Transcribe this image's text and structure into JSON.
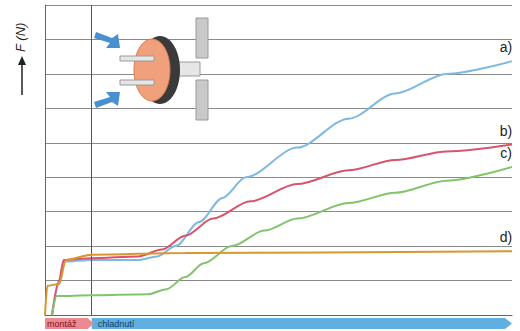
{
  "chart_data": {
    "type": "line",
    "y_label": "F (N)",
    "xlim": [
      0,
      100
    ],
    "ylim": [
      0,
      9
    ],
    "yticks": [
      0,
      1,
      2,
      3,
      4,
      5,
      6,
      7,
      8,
      9
    ],
    "grid": true,
    "tick_labels": false,
    "phases": [
      {
        "label": "montáž",
        "start": 0,
        "end": 10
      },
      {
        "label": "chladnutí",
        "start": 10,
        "end": 100
      }
    ],
    "series": [
      {
        "name": "a)",
        "color": "#7fb8e0",
        "x": [
          1.5,
          3,
          4,
          10,
          20,
          24,
          28,
          33,
          38,
          43,
          54,
          65,
          75,
          86,
          100
        ],
        "values": [
          0,
          0.9,
          1.55,
          1.6,
          1.6,
          1.7,
          2.0,
          2.7,
          3.4,
          4.0,
          4.86,
          5.7,
          6.43,
          7.0,
          7.37
        ]
      },
      {
        "name": "b)",
        "color": "#d9536b",
        "x": [
          1.5,
          3,
          4,
          10,
          20,
          25,
          30,
          36,
          44,
          54,
          65,
          75,
          86,
          100
        ],
        "values": [
          0,
          1.0,
          1.6,
          1.65,
          1.7,
          1.9,
          2.3,
          2.8,
          3.3,
          3.8,
          4.2,
          4.5,
          4.75,
          4.95
        ]
      },
      {
        "name": "c)",
        "color": "#82c46c",
        "x": [
          1.5,
          2.5,
          10,
          22,
          26,
          30,
          34,
          40,
          47,
          54,
          65,
          75,
          86,
          100
        ],
        "values": [
          0,
          0.55,
          0.57,
          0.6,
          0.75,
          1.1,
          1.5,
          2.0,
          2.45,
          2.8,
          3.25,
          3.55,
          3.9,
          4.3
        ]
      },
      {
        "name": "d)",
        "color": "#d9962f",
        "x": [
          0,
          0.5,
          3,
          4.5,
          10,
          30,
          100
        ],
        "values": [
          0,
          0.85,
          0.9,
          1.6,
          1.75,
          1.8,
          1.85
        ]
      }
    ]
  }
}
